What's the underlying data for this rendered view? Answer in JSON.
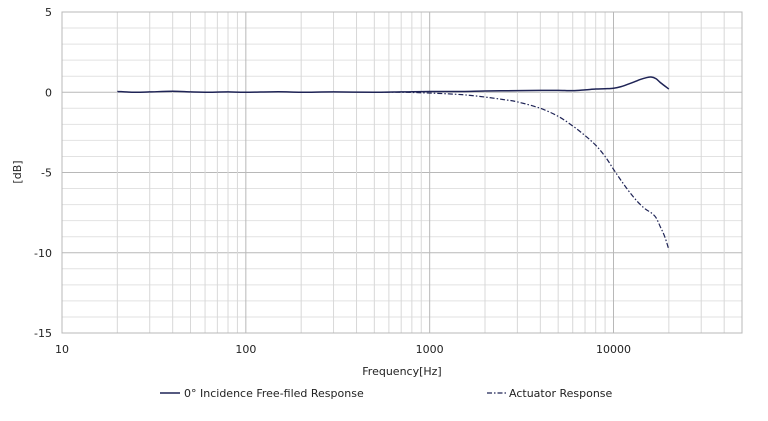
{
  "chart_data": {
    "type": "line",
    "xlabel": "Frequency[Hz]",
    "ylabel": "[dB]",
    "x_scale": "log",
    "xlim": [
      10,
      50000
    ],
    "ylim": [
      -15,
      5
    ],
    "x_ticks": [
      "10",
      "100",
      "1000",
      "10000"
    ],
    "y_ticks": [
      "5",
      "0",
      "-5",
      "-10",
      "-15"
    ],
    "grid": true,
    "legend_position": "bottom",
    "series": [
      {
        "name": "0° Incidence Free-filed Response",
        "style": "solid",
        "color": "#1f2456",
        "x": [
          20,
          25,
          30,
          40,
          50,
          60,
          80,
          100,
          150,
          200,
          300,
          500,
          700,
          1000,
          1500,
          2000,
          3000,
          4000,
          5000,
          6000,
          7000,
          8000,
          9000,
          10000,
          11000,
          12000,
          13000,
          14000,
          15000,
          16000,
          17000,
          18000,
          20000
        ],
        "y": [
          0.05,
          0.0,
          0.02,
          0.06,
          0.02,
          0.0,
          0.02,
          0.0,
          0.03,
          0.0,
          0.02,
          0.0,
          0.02,
          0.05,
          0.05,
          0.08,
          0.1,
          0.12,
          0.12,
          0.1,
          0.15,
          0.2,
          0.22,
          0.25,
          0.35,
          0.5,
          0.65,
          0.8,
          0.9,
          0.95,
          0.85,
          0.6,
          0.2
        ]
      },
      {
        "name": "Actuator Response",
        "style": "dashdot",
        "color": "#1f2456",
        "x": [
          500,
          700,
          1000,
          1500,
          2000,
          2500,
          3000,
          4000,
          5000,
          6000,
          7000,
          8000,
          9000,
          10000,
          11000,
          12000,
          13000,
          14000,
          15000,
          16000,
          17000,
          18000,
          19000,
          20000
        ],
        "y": [
          0.0,
          0.0,
          -0.05,
          -0.15,
          -0.3,
          -0.45,
          -0.6,
          -1.0,
          -1.5,
          -2.1,
          -2.7,
          -3.3,
          -4.0,
          -4.8,
          -5.5,
          -6.1,
          -6.6,
          -7.0,
          -7.3,
          -7.5,
          -7.8,
          -8.4,
          -9.0,
          -9.8
        ]
      }
    ]
  }
}
